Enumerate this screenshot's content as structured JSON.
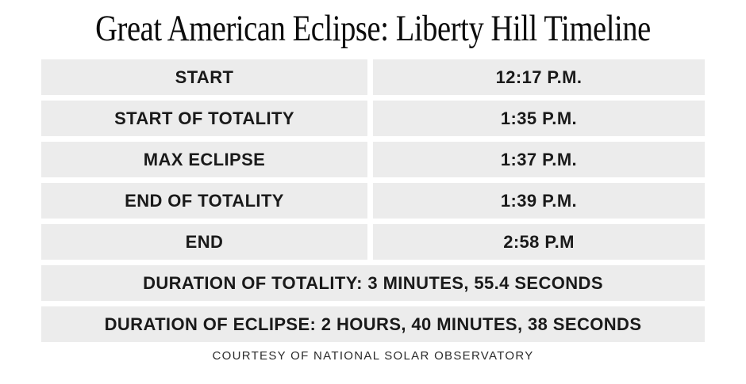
{
  "title": "Great American Eclipse: Liberty Hill Timeline",
  "timeline": {
    "rows": [
      {
        "label": "START",
        "value": "12:17 P.M."
      },
      {
        "label": "START OF TOTALITY",
        "value": "1:35 P.M."
      },
      {
        "label": "MAX ECLIPSE",
        "value": "1:37 P.M."
      },
      {
        "label": "END OF TOTALITY",
        "value": "1:39 P.M."
      },
      {
        "label": "END",
        "value": "2:58 P.M"
      }
    ],
    "summary_rows": [
      {
        "text": "DURATION OF TOTALITY: 3 MINUTES, 55.4 SECONDS"
      },
      {
        "text": "DURATION OF ECLIPSE: 2 HOURS, 40 MINUTES, 38 SECONDS"
      }
    ]
  },
  "footer": {
    "credit": "COURTESY OF NATIONAL SOLAR OBSERVATORY"
  },
  "colors": {
    "background": "#ffffff",
    "row_bg": "#ececec",
    "text": "#1a1a1a",
    "title_text": "#0c0c0c",
    "credit_text": "#2b2b2b"
  }
}
